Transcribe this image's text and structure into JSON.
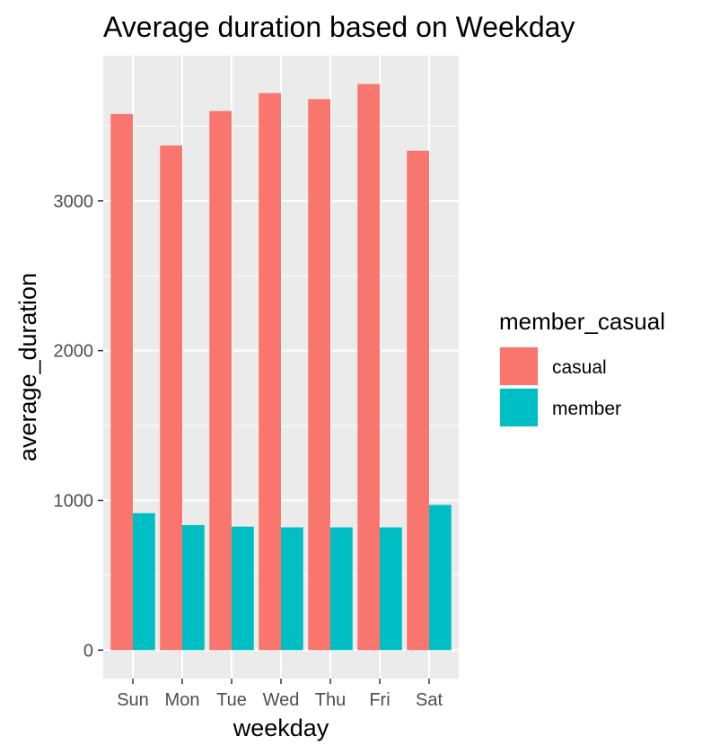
{
  "chart_data": {
    "type": "bar",
    "title": "Average duration based on Weekday",
    "xlabel": "weekday",
    "ylabel": "average_duration",
    "categories": [
      "Sun",
      "Mon",
      "Tue",
      "Wed",
      "Thu",
      "Fri",
      "Sat"
    ],
    "series": [
      {
        "name": "casual",
        "color": "#F8766D",
        "values": [
          3580,
          3370,
          3600,
          3720,
          3680,
          3780,
          3335
        ]
      },
      {
        "name": "member",
        "color": "#00BFC4",
        "values": [
          915,
          835,
          825,
          820,
          820,
          820,
          970
        ]
      }
    ],
    "yticks": [
      0,
      1000,
      2000,
      3000
    ],
    "ylim": [
      -190,
      3970
    ],
    "grid": true,
    "legend": {
      "title": "member_casual",
      "position": "right"
    },
    "panel_background": "#EBEBEB"
  }
}
